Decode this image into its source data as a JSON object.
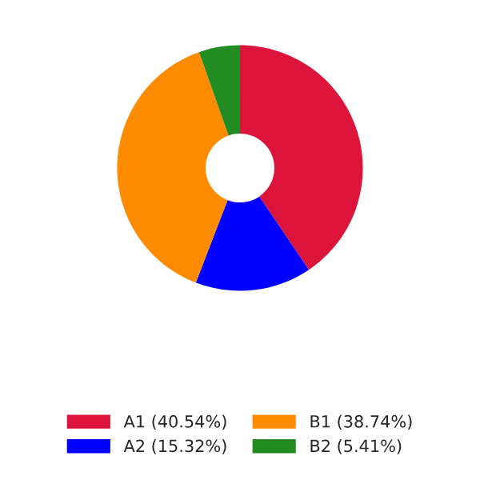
{
  "chart_data": {
    "type": "donut",
    "categories": [
      "A1 (40.54%)",
      "A2 (15.32%)",
      "B1 (38.74%)",
      "B2 (5.41%)"
    ],
    "values": [
      40.54,
      15.32,
      38.74,
      5.41
    ],
    "colors": [
      "#dc143c",
      "#0000ff",
      "#ff8c00",
      "#228b22"
    ],
    "legend": "bottom"
  }
}
